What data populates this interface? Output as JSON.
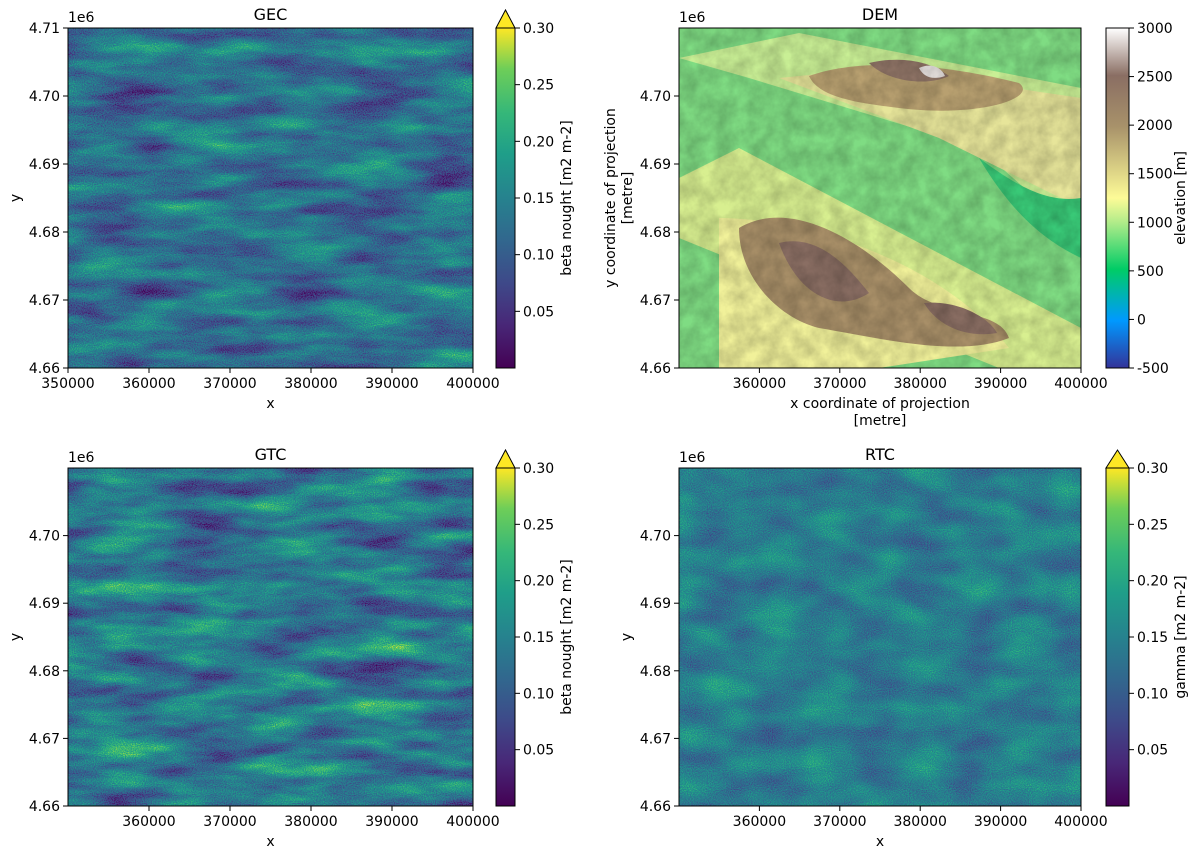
{
  "chart_data": [
    {
      "type": "heatmap",
      "title": "GEC",
      "xlabel": "x",
      "ylabel": "y",
      "x_ticks": [
        "350000",
        "360000",
        "370000",
        "380000",
        "390000",
        "400000"
      ],
      "y_ticks": [
        "4.66",
        "4.67",
        "4.68",
        "4.69",
        "4.70",
        "4.71"
      ],
      "y_offset": "1e6",
      "xlim": [
        350000,
        400000
      ],
      "ylim": [
        4660000,
        4710000
      ],
      "colorbar": {
        "label": "beta nought  [m2 m-2]",
        "ticks": [
          "0.05",
          "0.10",
          "0.15",
          "0.20",
          "0.25",
          "0.30"
        ],
        "range": [
          0.0,
          0.3
        ],
        "extend": "max",
        "cmap": "viridis"
      }
    },
    {
      "type": "heatmap",
      "title": "DEM",
      "xlabel": "x coordinate of projection\n[metre]",
      "ylabel": "y coordinate of projection\n[metre]",
      "x_ticks": [
        "360000",
        "370000",
        "380000",
        "390000",
        "400000"
      ],
      "y_ticks": [
        "4.66",
        "4.67",
        "4.68",
        "4.69",
        "4.70"
      ],
      "y_offset": "1e6",
      "xlim": [
        350000,
        400000
      ],
      "ylim": [
        4660000,
        4710000
      ],
      "colorbar": {
        "label": "elevation [m]",
        "ticks": [
          "-500",
          "0",
          "500",
          "1000",
          "1500",
          "2000",
          "2500",
          "3000"
        ],
        "range": [
          -500,
          3000
        ],
        "cmap": "terrain"
      }
    },
    {
      "type": "heatmap",
      "title": "GTC",
      "xlabel": "x",
      "ylabel": "y",
      "x_ticks": [
        "360000",
        "370000",
        "380000",
        "390000",
        "400000"
      ],
      "y_ticks": [
        "4.66",
        "4.67",
        "4.68",
        "4.69",
        "4.70"
      ],
      "y_offset": "1e6",
      "xlim": [
        350000,
        400000
      ],
      "ylim": [
        4660000,
        4710000
      ],
      "colorbar": {
        "label": "beta nought  [m2 m-2]",
        "ticks": [
          "0.05",
          "0.10",
          "0.15",
          "0.20",
          "0.25",
          "0.30"
        ],
        "range": [
          0.0,
          0.3
        ],
        "extend": "max",
        "cmap": "viridis"
      }
    },
    {
      "type": "heatmap",
      "title": "RTC",
      "xlabel": "x",
      "ylabel": "y",
      "x_ticks": [
        "360000",
        "370000",
        "380000",
        "390000",
        "400000"
      ],
      "y_ticks": [
        "4.66",
        "4.67",
        "4.68",
        "4.69",
        "4.70"
      ],
      "y_offset": "1e6",
      "xlim": [
        350000,
        400000
      ],
      "ylim": [
        4660000,
        4710000
      ],
      "colorbar": {
        "label": "gamma [m2 m-2]",
        "ticks": [
          "0.05",
          "0.10",
          "0.15",
          "0.20",
          "0.25",
          "0.30"
        ],
        "range": [
          0.0,
          0.3
        ],
        "extend": "max",
        "cmap": "viridis"
      }
    }
  ]
}
